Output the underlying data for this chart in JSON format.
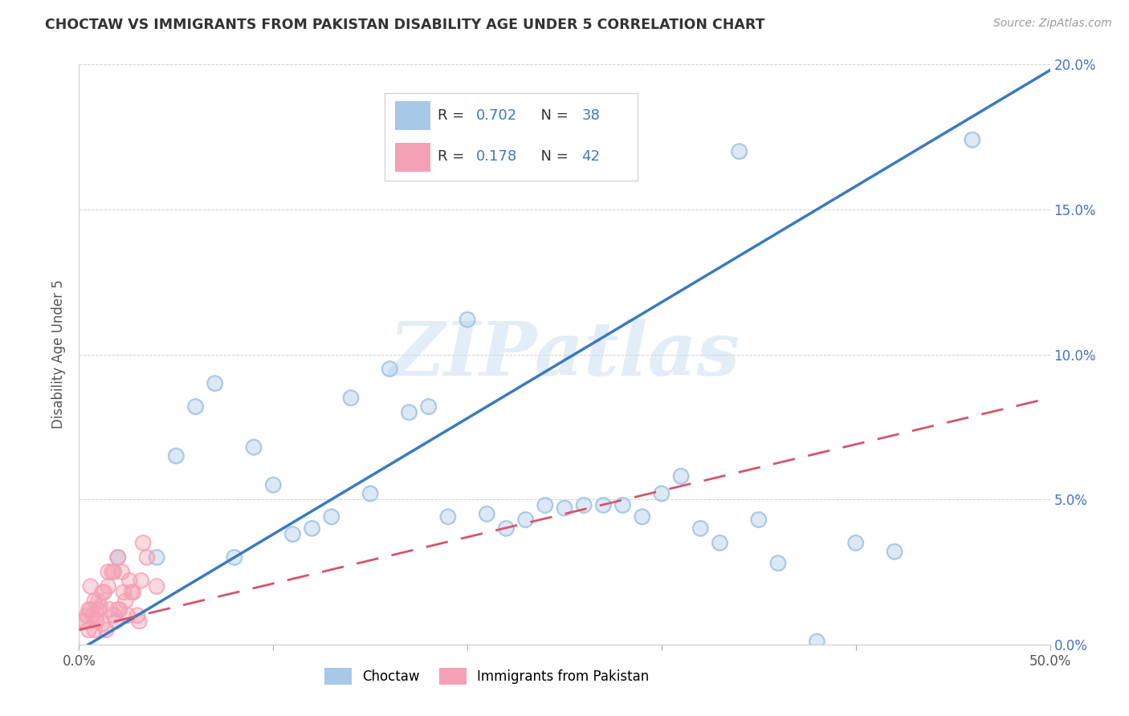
{
  "title": "CHOCTAW VS IMMIGRANTS FROM PAKISTAN DISABILITY AGE UNDER 5 CORRELATION CHART",
  "source": "Source: ZipAtlas.com",
  "ylabel": "Disability Age Under 5",
  "xlim": [
    0,
    0.5
  ],
  "ylim": [
    0,
    0.2
  ],
  "xticks": [
    0.0,
    0.1,
    0.2,
    0.3,
    0.4,
    0.5
  ],
  "yticks": [
    0.0,
    0.05,
    0.1,
    0.15,
    0.2
  ],
  "xticklabels": [
    "0.0%",
    "",
    "",
    "",
    "",
    "50.0%"
  ],
  "yticklabels_right": [
    "0.0%",
    "5.0%",
    "10.0%",
    "15.0%",
    "20.0%"
  ],
  "legend1_R": "0.702",
  "legend1_N": "38",
  "legend2_R": "0.178",
  "legend2_N": "42",
  "blue_color": "#a8c8e8",
  "blue_line_color": "#3a7abf",
  "pink_color": "#f4a0b5",
  "pink_line_color": "#d6546a",
  "watermark": "ZIPatlas",
  "blue_scatter_x": [
    0.34,
    0.46,
    0.07,
    0.05,
    0.08,
    0.12,
    0.1,
    0.06,
    0.14,
    0.04,
    0.18,
    0.22,
    0.16,
    0.26,
    0.24,
    0.2,
    0.28,
    0.3,
    0.32,
    0.09,
    0.13,
    0.19,
    0.23,
    0.25,
    0.21,
    0.15,
    0.17,
    0.29,
    0.31,
    0.27,
    0.11,
    0.35,
    0.38,
    0.33,
    0.02,
    0.36,
    0.4,
    0.42
  ],
  "blue_scatter_y": [
    0.17,
    0.174,
    0.09,
    0.065,
    0.03,
    0.04,
    0.055,
    0.082,
    0.085,
    0.03,
    0.082,
    0.04,
    0.095,
    0.048,
    0.048,
    0.112,
    0.048,
    0.052,
    0.04,
    0.068,
    0.044,
    0.044,
    0.043,
    0.047,
    0.045,
    0.052,
    0.08,
    0.044,
    0.058,
    0.048,
    0.038,
    0.043,
    0.001,
    0.035,
    0.03,
    0.028,
    0.035,
    0.032
  ],
  "pink_scatter_x": [
    0.005,
    0.008,
    0.012,
    0.015,
    0.018,
    0.02,
    0.025,
    0.03,
    0.01,
    0.006,
    0.022,
    0.016,
    0.009,
    0.014,
    0.035,
    0.028,
    0.003,
    0.007,
    0.011,
    0.019,
    0.024,
    0.032,
    0.002,
    0.004,
    0.013,
    0.017,
    0.021,
    0.026,
    0.031,
    0.04,
    0.008,
    0.012,
    0.006,
    0.023,
    0.015,
    0.01,
    0.018,
    0.027,
    0.033,
    0.005,
    0.009,
    0.02
  ],
  "pink_scatter_y": [
    0.012,
    0.015,
    0.018,
    0.02,
    0.025,
    0.03,
    0.01,
    0.01,
    0.015,
    0.02,
    0.025,
    0.012,
    0.01,
    0.005,
    0.03,
    0.018,
    0.008,
    0.01,
    0.013,
    0.008,
    0.015,
    0.022,
    0.008,
    0.01,
    0.018,
    0.025,
    0.012,
    0.022,
    0.008,
    0.02,
    0.005,
    0.007,
    0.012,
    0.018,
    0.025,
    0.012,
    0.01,
    0.018,
    0.035,
    0.005,
    0.008,
    0.012
  ]
}
